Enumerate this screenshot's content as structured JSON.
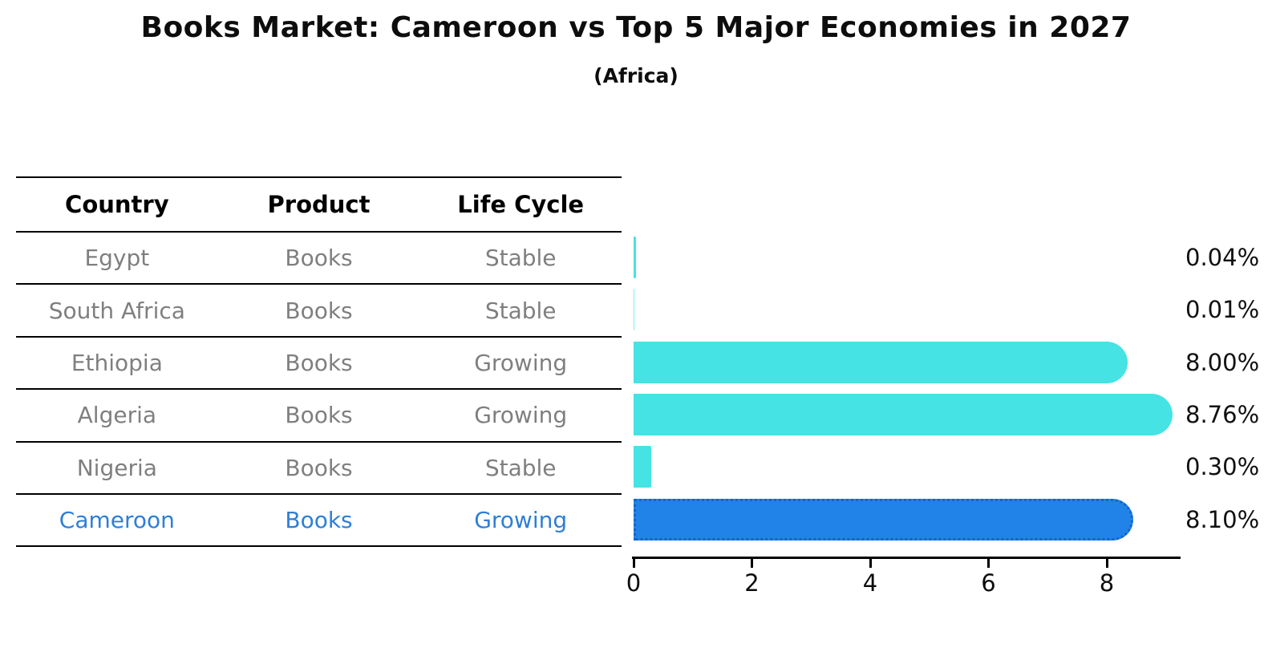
{
  "title": "Books Market: Cameroon vs Top 5 Major Economies in 2027",
  "subtitle": "(Africa)",
  "table": {
    "headers": [
      "Country",
      "Product",
      "Life Cycle"
    ],
    "rows": [
      {
        "country": "Egypt",
        "product": "Books",
        "life_cycle": "Stable",
        "highlighted": false
      },
      {
        "country": "South Africa",
        "product": "Books",
        "life_cycle": "Stable",
        "highlighted": false
      },
      {
        "country": "Ethiopia",
        "product": "Books",
        "life_cycle": "Growing",
        "highlighted": false
      },
      {
        "country": "Algeria",
        "product": "Books",
        "life_cycle": "Growing",
        "highlighted": false
      },
      {
        "country": "Nigeria",
        "product": "Books",
        "life_cycle": "Stable",
        "highlighted": false
      },
      {
        "country": "Cameroon",
        "product": "Books",
        "life_cycle": "Growing",
        "highlighted": true
      }
    ]
  },
  "chart_data": {
    "type": "bar",
    "orientation": "horizontal",
    "title": "Books Market: Cameroon vs Top 5 Major Economies in 2027",
    "subtitle": "(Africa)",
    "categories": [
      "Egypt",
      "South Africa",
      "Ethiopia",
      "Algeria",
      "Nigeria",
      "Cameroon"
    ],
    "values": [
      0.04,
      0.01,
      8.0,
      8.76,
      0.3,
      8.1
    ],
    "value_labels": [
      "0.04%",
      "0.01%",
      "8.00%",
      "8.76%",
      "0.30%",
      "8.10%"
    ],
    "x_ticks": [
      "0",
      "2",
      "4",
      "6",
      "8"
    ],
    "x_tick_values": [
      0,
      2,
      4,
      6,
      8
    ],
    "xlim": [
      0,
      9.25
    ],
    "grid": false,
    "legend": "none",
    "bar_color": "#45E3E3",
    "highlight_bar_color": "#2182E8",
    "highlight_border_color": "#1267C8",
    "highlight_index": 5
  },
  "colors": {
    "row_text": "#7F7F7F",
    "highlight_text": "#2E7FD6",
    "header_text": "#000000",
    "value_label_text": "#111111",
    "axis": "#000000"
  }
}
